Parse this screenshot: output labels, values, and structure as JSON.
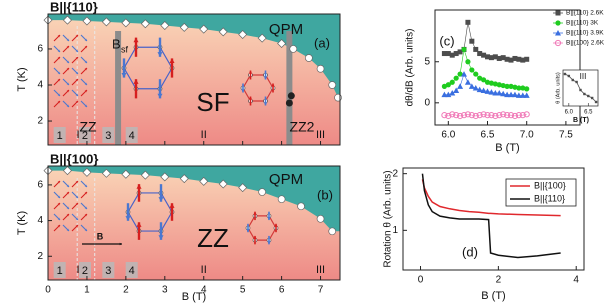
{
  "chart_data": [
    {
      "type": "phase",
      "title": "B||{110}",
      "panel_label": "(a)",
      "ylabel": "T (K)",
      "xlim": [
        0,
        7.5
      ],
      "xticks": [
        0,
        1,
        2,
        3,
        4,
        5,
        6,
        7
      ],
      "ylim": [
        0.67,
        7.94
      ],
      "yticks": [
        2,
        4,
        6
      ],
      "phase_labels": {
        "paramagnet": "QPM",
        "main": "SF",
        "low": "ZZ",
        "high": "ZZ2"
      },
      "sf_label": {
        "main": "B",
        "sub": "sf"
      },
      "regions": [
        "I",
        "II",
        "III"
      ],
      "stages": [
        "1",
        "2",
        "3",
        "4"
      ],
      "boundary_diamonds": {
        "x": [
          0,
          0.5,
          1,
          1.5,
          2,
          2.5,
          3,
          3.5,
          4,
          4.5,
          5,
          5.5,
          6
        ],
        "values": [
          7.6,
          7.6,
          7.55,
          7.5,
          7.45,
          7.4,
          7.3,
          7.2,
          7.1,
          6.95,
          6.8,
          6.6,
          6.3
        ]
      },
      "boundary_circles": {
        "x": [
          6.3,
          6.7,
          7.0,
          7.3,
          7.45
        ],
        "values": [
          6.0,
          5.5,
          4.9,
          4.0,
          3.3
        ]
      },
      "transition_points": {
        "x": [
          6.2,
          6.25
        ],
        "values": [
          3.0,
          3.4
        ]
      },
      "phase_lines": [
        {
          "value": 0.75,
          "style": "dashed"
        },
        {
          "value": 1.2,
          "style": "dashed"
        },
        {
          "value": 1.8,
          "style": "solid"
        },
        {
          "value": 6.2,
          "style": "solid"
        }
      ]
    },
    {
      "type": "phase",
      "title": "B||{100}",
      "panel_label": "(b)",
      "ylabel": "T (K)",
      "xlabel": "B (T)",
      "xlim": [
        0,
        7.5
      ],
      "xticks": [
        0,
        1,
        2,
        3,
        4,
        5,
        6,
        7
      ],
      "ylim": [
        0.67,
        7.06
      ],
      "yticks": [
        2,
        4,
        6
      ],
      "phase_labels": {
        "paramagnet": "QPM",
        "main": "ZZ"
      },
      "arrow_label": "B",
      "regions": [
        "I",
        "II",
        "III"
      ],
      "stages": [
        "1",
        "2",
        "3",
        "4"
      ],
      "boundary_diamonds": {
        "x": [
          0,
          0.5,
          1,
          1.5,
          2,
          2.5,
          3,
          3.5,
          4,
          4.5,
          5
        ],
        "values": [
          6.8,
          6.8,
          6.7,
          6.65,
          6.6,
          6.55,
          6.45,
          6.35,
          6.2,
          6.05,
          5.85
        ]
      },
      "boundary_circles": {
        "x": [
          5.5,
          6,
          6.5,
          7,
          7.3
        ],
        "values": [
          5.6,
          5.2,
          4.8,
          4.1,
          3.4
        ]
      },
      "phase_lines": [
        {
          "value": 0.75,
          "style": "dashed"
        },
        {
          "value": 1.2,
          "style": "dashed"
        }
      ]
    },
    {
      "type": "line",
      "panel_label": "(c)",
      "xlabel": "B (T)",
      "ylabel": "dθ/dB (Arb. units)",
      "xlim": [
        5.83,
        7.68
      ],
      "xticks": [
        {
          "value": 6,
          "label": "6.0"
        },
        6.5,
        {
          "value": 7,
          "label": "7.0"
        },
        7.5
      ],
      "ylim": [
        -2.7,
        11.3
      ],
      "yticks": [
        0,
        5
      ],
      "legend": "upper right",
      "x": [
        5.95,
        6.0,
        6.05,
        6.1,
        6.15,
        6.2,
        6.25,
        6.3,
        6.35,
        6.4,
        6.45,
        6.5,
        6.55,
        6.6,
        6.65,
        6.7,
        6.75,
        6.8,
        6.85,
        6.9,
        6.95,
        7.0
      ],
      "series": [
        {
          "name": "B||{110} 2.6K",
          "color": "#4d4d4d",
          "marker": "square",
          "values": [
            6,
            6,
            5.8,
            6,
            6.2,
            6.5,
            9.8,
            7.5,
            6.5,
            6,
            5.8,
            5.6,
            5.5,
            5.6,
            5.4,
            5.5,
            5.3,
            5.2,
            5.4,
            5.3,
            5.2,
            5.3
          ]
        },
        {
          "name": "B||{110} 3K",
          "color": "#1fcc1f",
          "marker": "circle",
          "values": [
            2,
            2.2,
            2.5,
            3,
            3.5,
            6.5,
            5,
            4,
            3.5,
            3,
            2.8,
            2.5,
            2.4,
            2.3,
            2.2,
            2.1,
            2,
            2,
            1.9,
            1.8,
            1.8,
            1.7
          ]
        },
        {
          "name": "B||{110} 3.9K",
          "color": "#3a6fe0",
          "marker": "triangle",
          "values": [
            1,
            1,
            1.2,
            1.5,
            2,
            3.5,
            2.5,
            2,
            1.8,
            1.6,
            1.5,
            1.4,
            1.3,
            1.2,
            1.2,
            1.1,
            1,
            1,
            1,
            0.9,
            0.9,
            0.9
          ]
        },
        {
          "name": "B||{100} 2.6K",
          "color": "#f07ab8",
          "marker": "open-circle",
          "values": [
            -1.5,
            -1.6,
            -1.4,
            -1.5,
            -1.6,
            -1.5,
            -1.4,
            -1.5,
            -1.6,
            -1.5,
            -1.4,
            -1.5,
            -1.5,
            -1.6,
            -1.5,
            -1.4,
            -1.5,
            -1.5,
            -1.6,
            -1.5,
            -1.5,
            -1.4
          ]
        }
      ],
      "inset": {
        "title": "III",
        "xlabel": "B (T)",
        "ylabel": "θ (Arb. units)",
        "x": [
          5.9,
          6.0,
          6.1,
          6.2,
          6.3,
          6.4,
          6.5,
          6.6,
          6.7
        ],
        "values": [
          1.0,
          0.95,
          0.85,
          0.8,
          0.6,
          0.5,
          0.45,
          0.4,
          0.3
        ],
        "xlim": [
          5.85,
          6.75
        ],
        "ylim": [
          0.2,
          1.1
        ],
        "xticks": [
          {
            "value": 6,
            "label": "6.0"
          },
          6.5
        ],
        "color": "#4d4d4d"
      }
    },
    {
      "type": "line",
      "panel_label": "(d)",
      "xlabel": "B (T)",
      "ylabel": "Rotation θ (Arb. units)",
      "xlim": [
        -0.45,
        4.2
      ],
      "xticks": [
        0,
        2,
        4
      ],
      "ylim": [
        0.3,
        2.1
      ],
      "yticks": [
        1,
        2
      ],
      "legend": "upper right",
      "x": [
        0.05,
        0.1,
        0.2,
        0.3,
        0.5,
        0.75,
        1.0,
        1.25,
        1.5,
        1.75,
        1.8,
        2.0,
        2.5,
        3.0,
        3.6
      ],
      "series": [
        {
          "name": "B||{100}",
          "color": "#e0282d",
          "values": [
            1.9,
            1.75,
            1.6,
            1.5,
            1.42,
            1.38,
            1.35,
            1.33,
            1.32,
            1.3,
            1.3,
            1.29,
            1.28,
            1.27,
            1.26
          ]
        },
        {
          "name": "B||{110}",
          "color": "#111111",
          "values": [
            2.0,
            1.7,
            1.45,
            1.33,
            1.25,
            1.22,
            1.2,
            1.2,
            1.2,
            1.19,
            0.6,
            0.56,
            0.52,
            0.55,
            0.6
          ]
        }
      ]
    }
  ]
}
